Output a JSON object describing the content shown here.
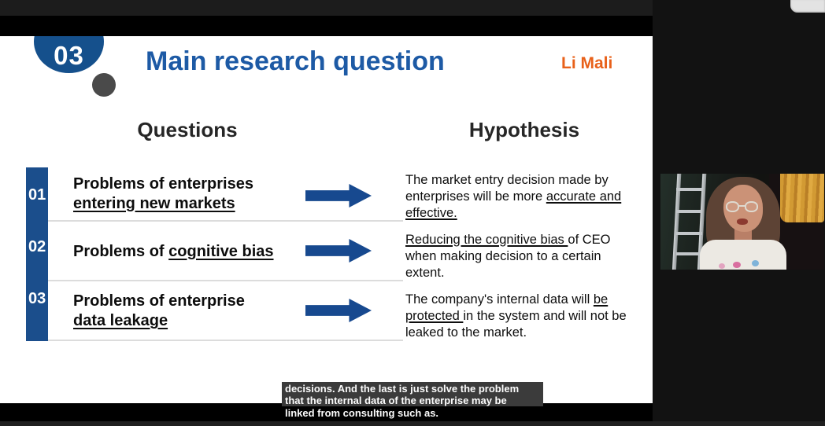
{
  "slide": {
    "badge_number": "03",
    "title": "Main research question",
    "presenter": "Li Mali",
    "columns": {
      "questions": "Questions",
      "hypothesis": "Hypothesis"
    },
    "rows": [
      {
        "num": "01",
        "q_line1": "Problems of enterprises",
        "q_underlined": "entering new markets",
        "h_pre": "The market entry decision made by enterprises will be more ",
        "h_u": "accurate and effective.",
        "h_post": ""
      },
      {
        "num": "02",
        "q_prefix": "Problems of ",
        "q_underlined": "cognitive bias",
        "h_pre": "",
        "h_u": "Reducing the cognitive bias ",
        "h_post": "of CEO when making decision to a certain extent."
      },
      {
        "num": "03",
        "q_line1": "Problems of enterprise",
        "q_underlined": "data leakage",
        "h_pre": "The company's internal data will ",
        "h_u": "be protected ",
        "h_post": "in the system and will not be leaked to the market."
      }
    ],
    "colors": {
      "accent_blue": "#1b4e8c",
      "title_blue": "#1d5aa5",
      "presenter_orange": "#e8611a"
    }
  },
  "captions": {
    "lines": [
      "decisions. And the last is just solve the problem",
      "that the internal data of the enterprise may be",
      "linked from consulting such as."
    ]
  }
}
